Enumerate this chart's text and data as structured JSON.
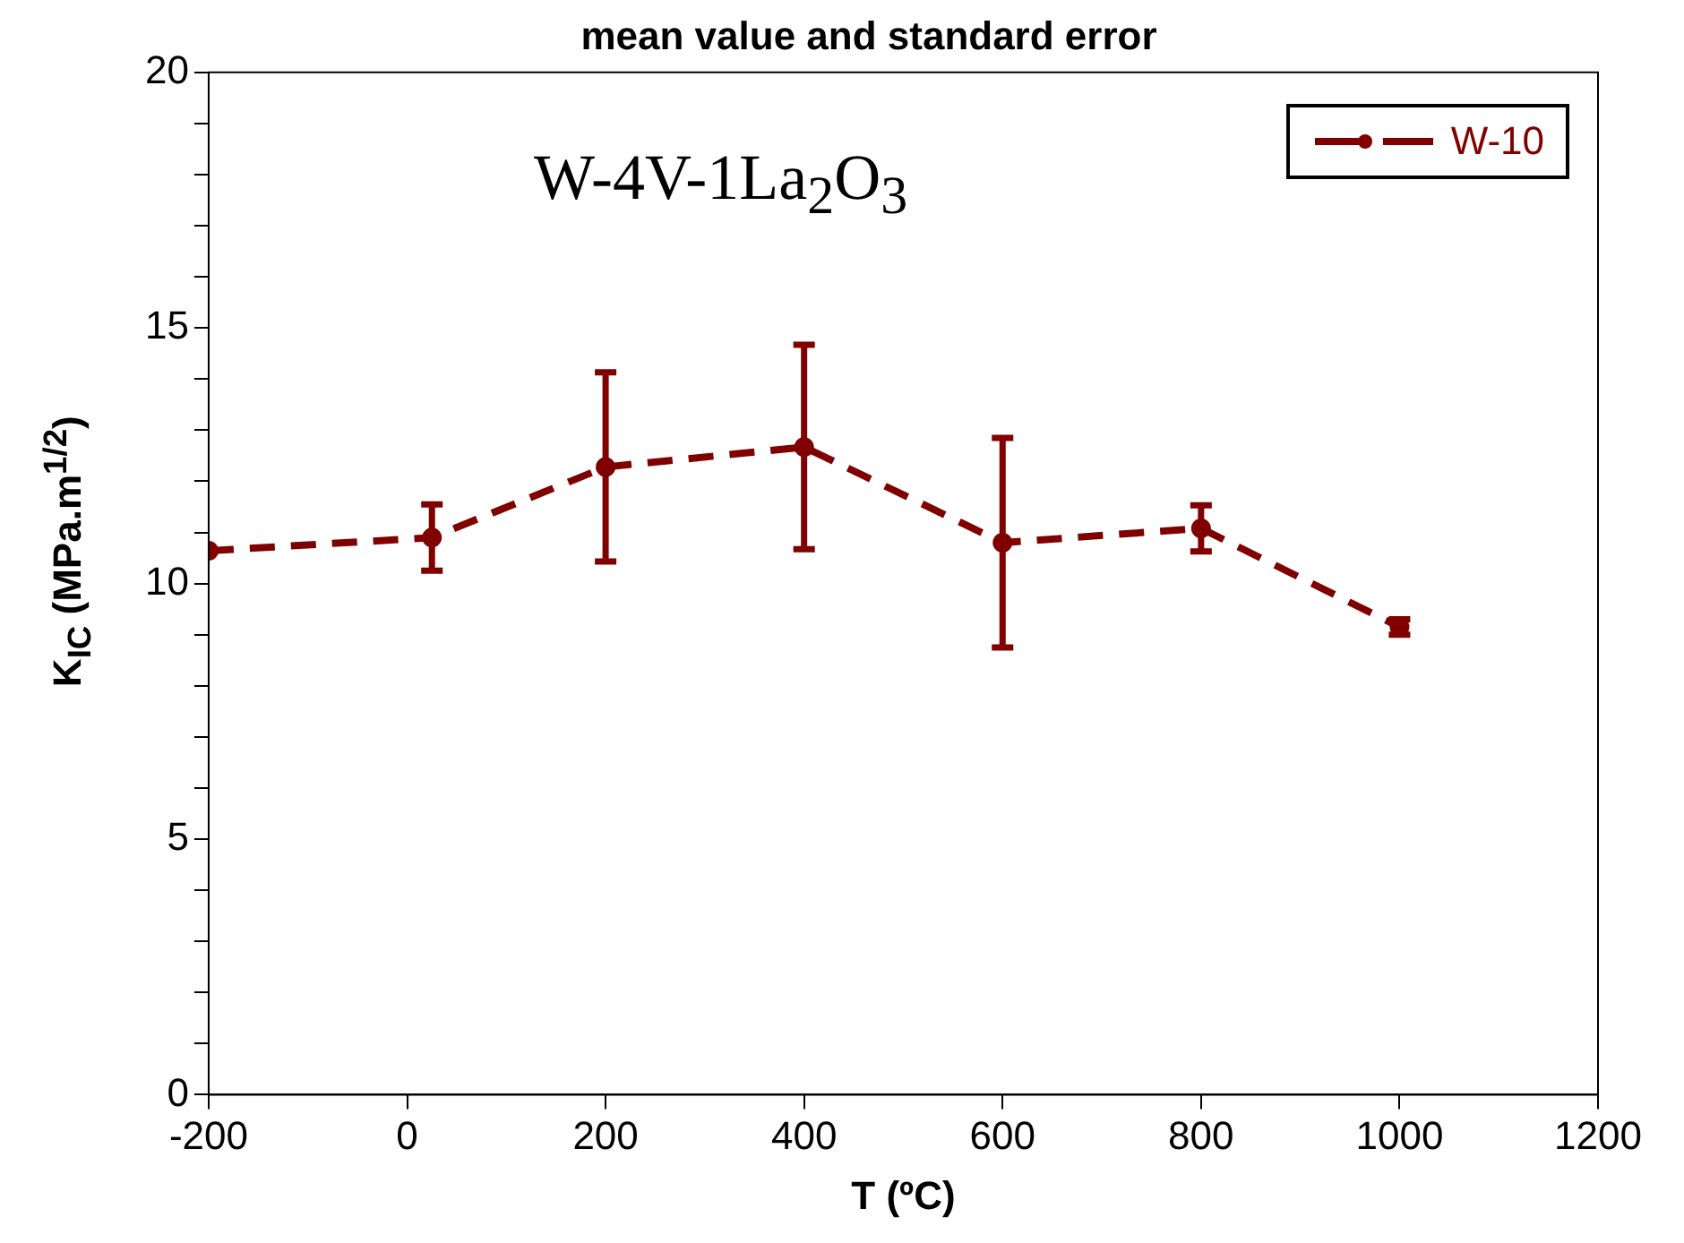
{
  "chart_data": {
    "type": "line",
    "title": "mean value and standard error",
    "xlabel": "T (ºC)",
    "ylabel": "K$_{IC}$ (MPa.m$^{1/2}$)",
    "annotations": [
      "W-4V-1La$_{2}$O$_{3}$"
    ],
    "x": [
      -200,
      25,
      200,
      400,
      600,
      800,
      1000
    ],
    "series": [
      {
        "name": "W-10",
        "color": "#800000",
        "values": [
          10.64,
          10.9,
          12.28,
          12.67,
          10.8,
          11.08,
          9.15
        ],
        "errors": [
          null,
          0.65,
          1.85,
          2.0,
          2.05,
          0.45,
          0.15
        ]
      }
    ],
    "xlim": [
      -200,
      1200
    ],
    "xticks": [
      -200,
      0,
      200,
      400,
      600,
      800,
      1000,
      1200
    ],
    "ylim": [
      0,
      20
    ],
    "yticks": [
      0,
      {
        "value": 1,
        "label": null
      },
      {
        "value": 2,
        "label": null
      },
      {
        "value": 3,
        "label": null
      },
      {
        "value": 4,
        "label": null
      },
      5,
      {
        "value": 6,
        "label": null
      },
      {
        "value": 7,
        "label": null
      },
      {
        "value": 8,
        "label": null
      },
      {
        "value": 9,
        "label": null
      },
      10,
      {
        "value": 11,
        "label": null
      },
      {
        "value": 12,
        "label": null
      },
      {
        "value": 13,
        "label": null
      },
      {
        "value": 14,
        "label": null
      },
      15,
      {
        "value": 16,
        "label": null
      },
      {
        "value": 17,
        "label": null
      },
      {
        "value": 18,
        "label": null
      },
      {
        "value": 19,
        "label": null
      },
      20
    ],
    "grid": false,
    "legend": "top right",
    "marker": "circle",
    "line_style": "dashed"
  }
}
